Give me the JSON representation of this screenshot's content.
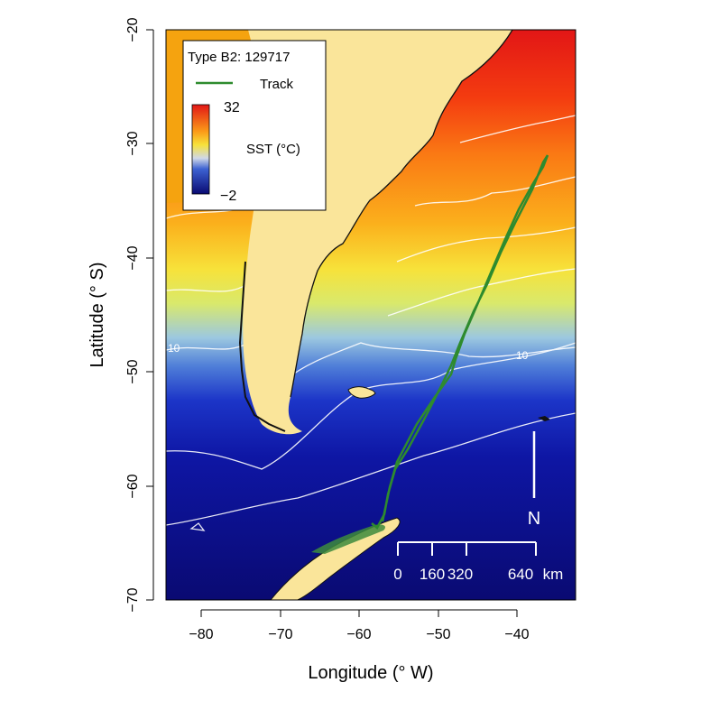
{
  "legend": {
    "title": "Type B2: 129717",
    "track_label": "Track",
    "colorbar_max": "32",
    "colorbar_min": "−2",
    "colorbar_label": "SST (°C)"
  },
  "axes": {
    "xlabel": "Longitude (° W)",
    "ylabel": "Latitude (° S)",
    "x_ticks": [
      "−80",
      "−70",
      "−60",
      "−50",
      "−40"
    ],
    "y_ticks": [
      "−20",
      "−30",
      "−40",
      "−50",
      "−60",
      "−70"
    ],
    "xlim": [
      -84,
      -33
    ],
    "ylim": [
      -70,
      -20
    ]
  },
  "contour_labels": {
    "left": "10",
    "right": "10"
  },
  "north_arrow": {
    "label": "N"
  },
  "scale_bar": {
    "ticks": [
      "0",
      "160",
      "320",
      "640"
    ],
    "unit": "km"
  },
  "colors": {
    "track": "#2e8b2e",
    "land": "#fae59a",
    "ocean_cold": "#0a0a7a",
    "ocean_warm": "#e81010",
    "contour": "#ffffff"
  }
}
